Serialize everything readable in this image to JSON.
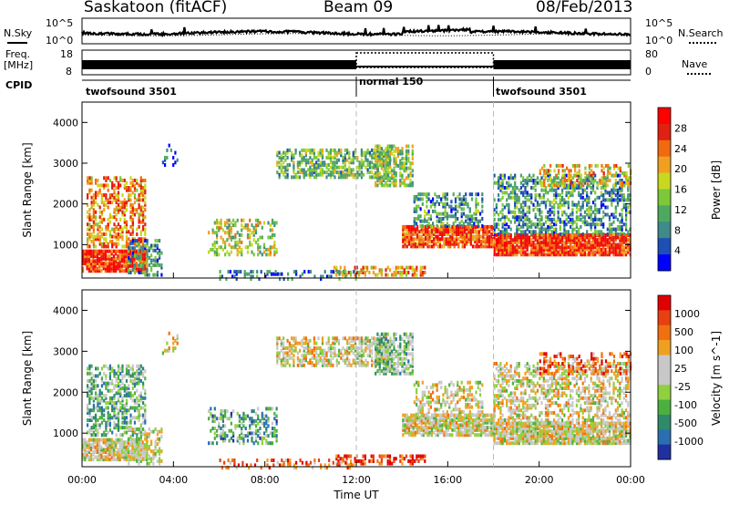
{
  "header": {
    "station": "Saskatoon (fitACF)",
    "beam": "Beam 09",
    "date": "08/Feb/2013"
  },
  "summary": {
    "nsky_label": "N.Sky",
    "nsearch_label": "N.Search",
    "freq_label_1": "Freq.",
    "freq_label_2": "[MHz]",
    "nave_label": "Nave",
    "cpid_label": "CPID",
    "noise_ticks": [
      "10^5",
      "10^0"
    ],
    "noise_ticks_right": [
      "10^5",
      "10^0"
    ],
    "freq_ticks": [
      "18",
      "8"
    ],
    "nave_ticks": [
      "80",
      "0"
    ],
    "cpid_segments": [
      {
        "name": "twofsound 3501",
        "start": 0,
        "end": 12
      },
      {
        "name": "normal 150",
        "start": 12,
        "end": 18
      },
      {
        "name": "twofsound 3501",
        "start": 18,
        "end": 24
      }
    ]
  },
  "chart_data": [
    {
      "type": "heatmap",
      "title": "",
      "xlabel": "Time UT",
      "ylabel": "Slant Range [km]",
      "xlim": [
        0,
        24
      ],
      "ylim": [
        180,
        4500
      ],
      "x_ticks": [
        "00:00",
        "04:00",
        "08:00",
        "12:00",
        "16:00",
        "20:00",
        "00:00"
      ],
      "y_ticks": [
        1000,
        2000,
        3000,
        4000
      ],
      "colorbar": {
        "label": "Power [dB]",
        "ticks": [
          "4",
          "8",
          "12",
          "16",
          "20",
          "24",
          "28"
        ],
        "colors": [
          "#0000ff",
          "#1e4fb4",
          "#3f8a8a",
          "#4ea860",
          "#7cc83a",
          "#c8d820",
          "#f0a020",
          "#f06a10",
          "#e02010",
          "#ff0000"
        ]
      }
    },
    {
      "type": "heatmap",
      "title": "",
      "xlabel": "Time UT",
      "ylabel": "Slant Range [km]",
      "xlim": [
        0,
        24
      ],
      "ylim": [
        180,
        4500
      ],
      "x_ticks": [
        "00:00",
        "04:00",
        "08:00",
        "12:00",
        "16:00",
        "20:00",
        "00:00"
      ],
      "y_ticks": [
        1000,
        2000,
        3000,
        4000
      ],
      "colorbar": {
        "label": "Velocity [m s^-1]",
        "ticks": [
          "1000",
          "500",
          "100",
          "25",
          "-25",
          "-100",
          "-500",
          "-1000"
        ],
        "colors": [
          "#2030a0",
          "#2a70b0",
          "#2f8a6a",
          "#4cb040",
          "#8fd040",
          "#c8c8c8",
          "#c8c8c8",
          "#f0a020",
          "#f07010",
          "#e84010",
          "#e00000"
        ]
      }
    }
  ],
  "mode_boundaries_ut": [
    12,
    18
  ]
}
